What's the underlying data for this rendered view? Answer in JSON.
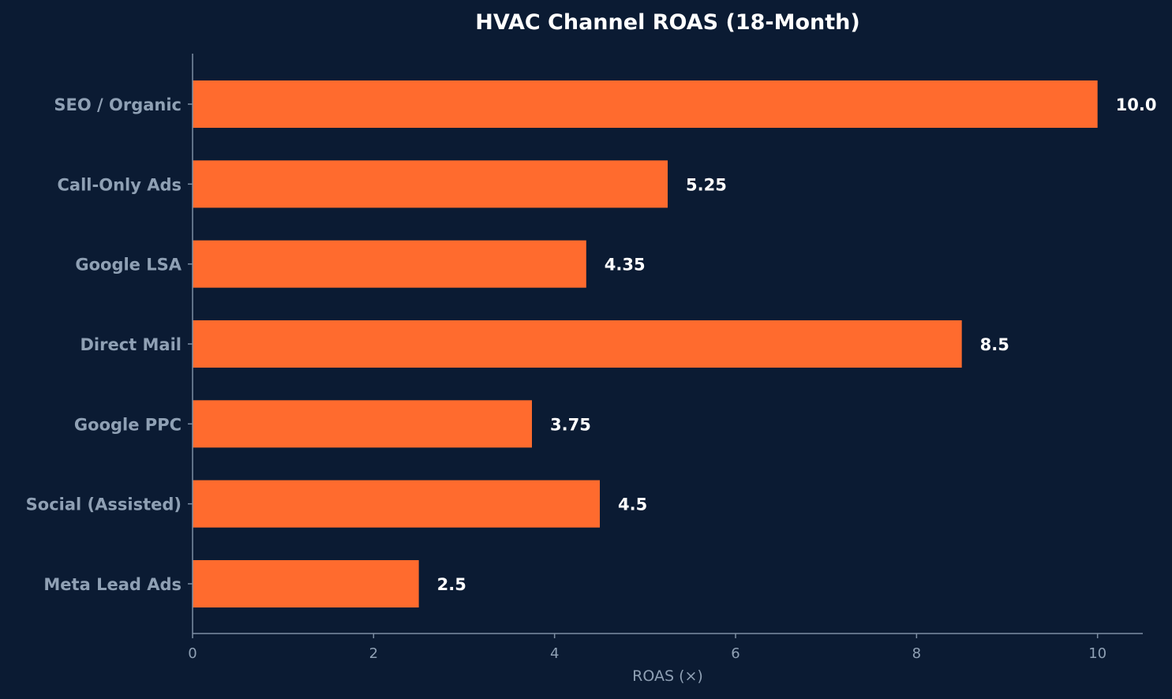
{
  "chart_data": {
    "type": "bar",
    "orientation": "horizontal",
    "title": "HVAC Channel ROAS (18-Month)",
    "xlabel": "ROAS (×)",
    "ylabel": "",
    "categories": [
      "SEO / Organic",
      "Call-Only Ads",
      "Google LSA",
      "Direct Mail",
      "Google PPC",
      "Social (Assisted)",
      "Meta Lead Ads"
    ],
    "values": [
      10.0,
      5.25,
      4.35,
      8.5,
      3.75,
      4.5,
      2.5
    ],
    "value_labels": [
      "10.0",
      "5.25",
      "4.35",
      "8.5",
      "3.75",
      "4.5",
      "2.5"
    ],
    "xlim": [
      0,
      10.5
    ],
    "xticks": [
      0,
      2,
      4,
      6,
      8,
      10
    ],
    "xtick_labels": [
      "0",
      "2",
      "4",
      "6",
      "8",
      "10"
    ],
    "grid": false,
    "legend": "none",
    "colors": {
      "background": "#0b1b33",
      "bar": "#ff6b2e",
      "title": "#ffffff",
      "label": "#8fa0b4",
      "axis": "#7d8ea3",
      "value_label": "#ffffff"
    }
  }
}
